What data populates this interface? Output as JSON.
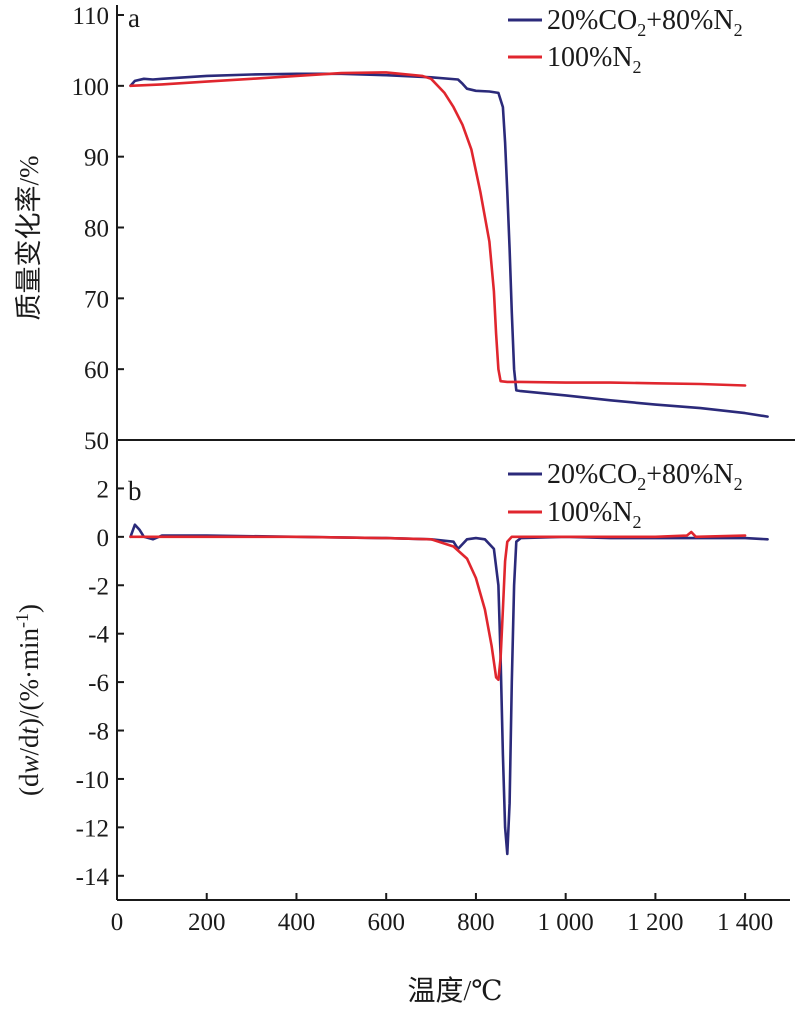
{
  "chart_data": [
    {
      "panel": "a",
      "type": "line",
      "ylabel": "质量变化率/%",
      "xlim": [
        0,
        1500
      ],
      "ylim": [
        50,
        110
      ],
      "yticks": [
        50,
        60,
        70,
        80,
        90,
        100,
        110
      ],
      "series": [
        {
          "name": "20%CO₂+80%N₂",
          "color": "#2b2a7a",
          "points": [
            [
              30,
              100
            ],
            [
              40,
              100.7
            ],
            [
              60,
              101
            ],
            [
              80,
              100.9
            ],
            [
              100,
              101
            ],
            [
              200,
              101.4
            ],
            [
              300,
              101.6
            ],
            [
              400,
              101.7
            ],
            [
              500,
              101.7
            ],
            [
              600,
              101.5
            ],
            [
              700,
              101.2
            ],
            [
              760,
              100.9
            ],
            [
              770,
              100.3
            ],
            [
              780,
              99.6
            ],
            [
              800,
              99.3
            ],
            [
              830,
              99.2
            ],
            [
              850,
              99
            ],
            [
              860,
              97
            ],
            [
              865,
              92
            ],
            [
              870,
              85
            ],
            [
              875,
              77
            ],
            [
              880,
              68
            ],
            [
              885,
              60
            ],
            [
              890,
              57
            ],
            [
              900,
              56.9
            ],
            [
              1000,
              56.3
            ],
            [
              1100,
              55.6
            ],
            [
              1200,
              55
            ],
            [
              1300,
              54.5
            ],
            [
              1400,
              53.8
            ],
            [
              1450,
              53.3
            ]
          ]
        },
        {
          "name": "100%N₂",
          "color": "#e0262e",
          "points": [
            [
              30,
              100
            ],
            [
              100,
              100.2
            ],
            [
              200,
              100.6
            ],
            [
              300,
              101
            ],
            [
              400,
              101.4
            ],
            [
              500,
              101.8
            ],
            [
              600,
              101.9
            ],
            [
              680,
              101.4
            ],
            [
              700,
              101
            ],
            [
              730,
              99
            ],
            [
              750,
              97
            ],
            [
              770,
              94.5
            ],
            [
              790,
              91
            ],
            [
              810,
              85
            ],
            [
              830,
              78
            ],
            [
              840,
              71
            ],
            [
              845,
              65
            ],
            [
              850,
              60
            ],
            [
              855,
              58.3
            ],
            [
              870,
              58.2
            ],
            [
              900,
              58.2
            ],
            [
              1000,
              58.1
            ],
            [
              1100,
              58.1
            ],
            [
              1200,
              58
            ],
            [
              1300,
              57.9
            ],
            [
              1400,
              57.7
            ]
          ]
        }
      ]
    },
    {
      "panel": "b",
      "type": "line",
      "ylabel": "(dw/dt)/(%·min⁻¹)",
      "xlabel": "温度/℃",
      "xlim": [
        0,
        1500
      ],
      "ylim": [
        -15,
        4
      ],
      "yticks": [
        -14,
        -12,
        -10,
        -8,
        -6,
        -4,
        -2,
        0,
        2
      ],
      "xticks": [
        0,
        200,
        400,
        600,
        800,
        1000,
        1200,
        1400
      ],
      "xticklabels": [
        "0",
        "200",
        "400",
        "600",
        "800",
        "1 000",
        "1 200",
        "1 400"
      ],
      "series": [
        {
          "name": "20%CO₂+80%N₂",
          "color": "#2b2a7a",
          "points": [
            [
              30,
              0
            ],
            [
              40,
              0.5
            ],
            [
              50,
              0.3
            ],
            [
              60,
              0
            ],
            [
              80,
              -0.1
            ],
            [
              100,
              0.05
            ],
            [
              200,
              0.05
            ],
            [
              400,
              0
            ],
            [
              600,
              -0.05
            ],
            [
              700,
              -0.1
            ],
            [
              750,
              -0.2
            ],
            [
              760,
              -0.5
            ],
            [
              770,
              -0.3
            ],
            [
              780,
              -0.1
            ],
            [
              800,
              -0.05
            ],
            [
              820,
              -0.1
            ],
            [
              840,
              -0.5
            ],
            [
              850,
              -2
            ],
            [
              855,
              -5
            ],
            [
              860,
              -9
            ],
            [
              865,
              -12
            ],
            [
              870,
              -13.1
            ],
            [
              875,
              -11
            ],
            [
              880,
              -6
            ],
            [
              885,
              -2
            ],
            [
              890,
              -0.2
            ],
            [
              900,
              -0.05
            ],
            [
              1000,
              0
            ],
            [
              1100,
              -0.05
            ],
            [
              1200,
              -0.05
            ],
            [
              1300,
              -0.05
            ],
            [
              1400,
              -0.05
            ],
            [
              1450,
              -0.1
            ]
          ]
        },
        {
          "name": "100%N₂",
          "color": "#e0262e",
          "points": [
            [
              30,
              0
            ],
            [
              100,
              0
            ],
            [
              200,
              0
            ],
            [
              400,
              0
            ],
            [
              600,
              -0.05
            ],
            [
              700,
              -0.1
            ],
            [
              750,
              -0.4
            ],
            [
              780,
              -0.9
            ],
            [
              800,
              -1.7
            ],
            [
              820,
              -3
            ],
            [
              835,
              -4.5
            ],
            [
              845,
              -5.8
            ],
            [
              850,
              -5.9
            ],
            [
              855,
              -5
            ],
            [
              860,
              -3
            ],
            [
              865,
              -1
            ],
            [
              870,
              -0.2
            ],
            [
              880,
              0
            ],
            [
              1000,
              0
            ],
            [
              1100,
              0
            ],
            [
              1200,
              0
            ],
            [
              1270,
              0.05
            ],
            [
              1280,
              0.2
            ],
            [
              1290,
              0
            ],
            [
              1400,
              0.05
            ]
          ]
        }
      ]
    }
  ],
  "panel_a_label": "a",
  "panel_b_label": "b",
  "legend": {
    "co2": {
      "main": "20%CO",
      "sub1": "2",
      "mid": "+80%N",
      "sub2": "2"
    },
    "n2": {
      "main": "100%N",
      "sub": "2"
    }
  },
  "ylabel_b": {
    "pre": "(d",
    "w": "w",
    "mid": "/d",
    "t": "t",
    "post": ")/(%·min",
    "sup": "-1",
    "end": ")"
  }
}
